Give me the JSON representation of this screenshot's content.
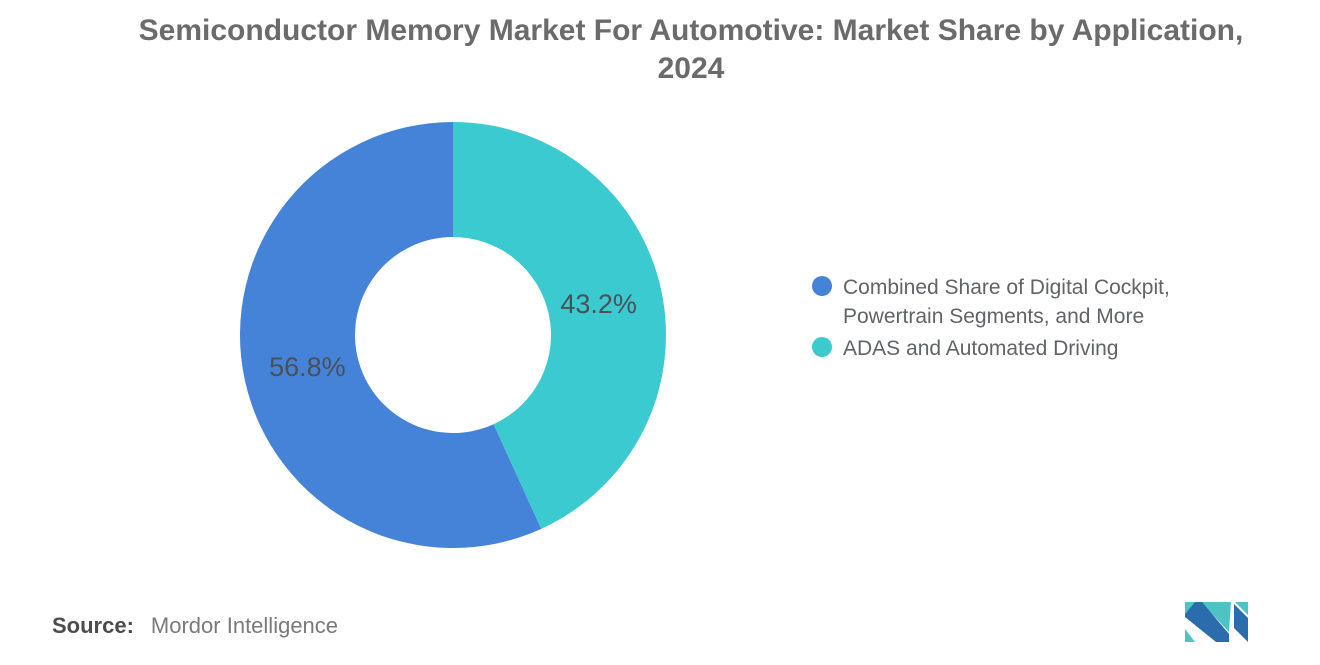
{
  "header": {
    "title_lines": [
      "Semiconductor Memory Market For Automotive: Market Share by Application,",
      "2024"
    ]
  },
  "chart_data": {
    "type": "pie",
    "title": "Semiconductor Memory Market For Automotive: Market Share by Application, 2024",
    "series": [
      {
        "name": "Combined Share of Digital Cockpit, Powertrain Segments, and More",
        "value": 56.8,
        "label": "56.8%",
        "color": "#4583D9"
      },
      {
        "name": "ADAS and Automated Driving",
        "value": 43.2,
        "label": "43.2%",
        "color": "#3BCAD0"
      }
    ],
    "donut": true,
    "inner_radius_ratio": 0.46,
    "label_radius_ratio": 0.7,
    "start_angle_deg": 0,
    "direction": "counterclockwise",
    "legend_position": "right",
    "data_label_color": "#4a5056",
    "data_label_font_size": 27,
    "background": "#ffffff"
  },
  "footer": {
    "source_label": "Source:",
    "source_value": "Mordor Intelligence",
    "logo_name": "mordor-intelligence-logo",
    "logo_colors": {
      "blue": "#2B6CAC",
      "teal": "#4FC2C6"
    }
  }
}
